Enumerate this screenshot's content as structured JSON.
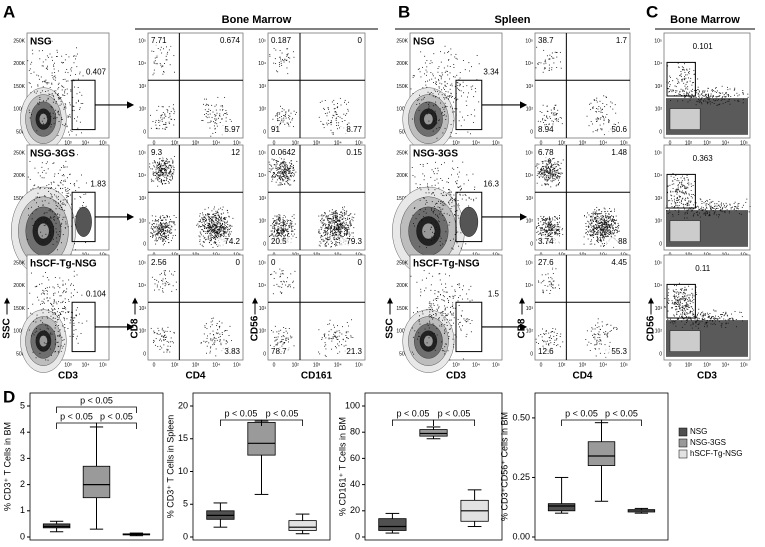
{
  "panels": [
    {
      "letter": "A",
      "title": "Bone Marrow",
      "x_labels": [
        "CD3",
        "CD4",
        "CD161"
      ],
      "y_labels": [
        "SSC",
        "CD8",
        "CD56"
      ],
      "rows": [
        {
          "sample": "NSG",
          "plots": [
            {
              "gate": "0.407"
            },
            {
              "tl": "7.71",
              "tr": "0.674",
              "br": "5.97"
            },
            {
              "tl": "0.187",
              "tr": "0",
              "bl": "91",
              "br": "8.77"
            }
          ]
        },
        {
          "sample": "NSG-3GS",
          "plots": [
            {
              "gate": "1.83"
            },
            {
              "tl": "9.3",
              "tr": "12",
              "br": "74.2"
            },
            {
              "tl": "0.0642",
              "tr": "0.15",
              "bl": "20.5",
              "br": "79.3"
            }
          ]
        },
        {
          "sample": "hSCF-Tg-NSG",
          "plots": [
            {
              "gate": "0.104"
            },
            {
              "tl": "2.56",
              "tr": "0",
              "br": "3.83"
            },
            {
              "tl": "0",
              "tr": "0",
              "bl": "78.7",
              "br": "21.3"
            }
          ]
        }
      ]
    },
    {
      "letter": "B",
      "title": "Spleen",
      "x_labels": [
        "CD3",
        "CD4"
      ],
      "y_labels": [
        "SSC",
        "CD8"
      ],
      "rows": [
        {
          "sample": "NSG",
          "plots": [
            {
              "gate": "3.34"
            },
            {
              "tl": "38.7",
              "tr": "1.7",
              "bl": "8.94",
              "br": "50.6"
            }
          ]
        },
        {
          "sample": "NSG-3GS",
          "plots": [
            {
              "gate": "16.3"
            },
            {
              "tl": "6.78",
              "tr": "1.48",
              "bl": "3.74",
              "br": "88"
            }
          ]
        },
        {
          "sample": "hSCF-Tg-NSG",
          "plots": [
            {
              "gate": "1.5"
            },
            {
              "tl": "27.6",
              "tr": "4.45",
              "bl": "12.6",
              "br": "55.3"
            }
          ]
        }
      ]
    },
    {
      "letter": "C",
      "title": "Bone Marrow",
      "x_labels": [
        "CD3"
      ],
      "y_labels": [
        "CD56"
      ],
      "rows": [
        {
          "plots": [
            {
              "gate": "0.101"
            }
          ]
        },
        {
          "plots": [
            {
              "gate": "0.363"
            }
          ]
        },
        {
          "plots": [
            {
              "gate": "0.11"
            }
          ]
        }
      ]
    }
  ],
  "axis_ticks": {
    "log": [
      "0",
      "10²",
      "10³",
      "10⁴",
      "10⁵"
    ],
    "linear": [
      "50K",
      "100K",
      "150K",
      "200K",
      "250K"
    ]
  },
  "panel_d": {
    "letter": "D"
  },
  "legend": [
    {
      "name": "NSG",
      "color": "#505050"
    },
    {
      "name": "NSG-3GS",
      "color": "#9a9a9a"
    },
    {
      "name": "hSCF-Tg-NSG",
      "color": "#e2e2e2"
    }
  ],
  "chart_data": [
    {
      "type": "box",
      "ylabel": "% CD3⁺ T Cells in BM",
      "ylim": [
        0,
        5
      ],
      "yticks": [
        0,
        1,
        2,
        3,
        4,
        5
      ],
      "annotations": [
        "p < 0.05",
        "p < 0.05",
        "p < 0.05"
      ],
      "boxes": [
        {
          "min": 0.2,
          "q1": 0.35,
          "median": 0.4,
          "q3": 0.5,
          "max": 0.6
        },
        {
          "min": 0.3,
          "q1": 1.5,
          "median": 2.0,
          "q3": 2.7,
          "max": 4.2
        },
        {
          "min": 0.05,
          "q1": 0.08,
          "median": 0.1,
          "q3": 0.12,
          "max": 0.15
        }
      ]
    },
    {
      "type": "box",
      "ylabel": "% CD3⁺ T Cells in Spleen",
      "ylim": [
        0,
        20
      ],
      "yticks": [
        0,
        5,
        10,
        15,
        20
      ],
      "annotations": [
        "p < 0.05",
        "p < 0.05"
      ],
      "boxes": [
        {
          "min": 1.5,
          "q1": 2.7,
          "median": 3.3,
          "q3": 4,
          "max": 5.2
        },
        {
          "min": 6.5,
          "q1": 12.5,
          "median": 14.3,
          "q3": 17.5,
          "max": 17.7
        },
        {
          "min": 0.5,
          "q1": 1,
          "median": 1.5,
          "q3": 2.5,
          "max": 3.5
        }
      ]
    },
    {
      "type": "box",
      "ylabel": "% CD161⁺ T Cells in BM",
      "ylim": [
        0,
        100
      ],
      "yticks": [
        0,
        20,
        40,
        60,
        80,
        100
      ],
      "annotations": [
        "p < 0.05",
        "p < 0.05"
      ],
      "boxes": [
        {
          "min": 3,
          "q1": 5,
          "median": 8,
          "q3": 14,
          "max": 18
        },
        {
          "min": 75,
          "q1": 77,
          "median": 79,
          "q3": 82,
          "max": 84
        },
        {
          "min": 8,
          "q1": 12,
          "median": 20,
          "q3": 28,
          "max": 36
        }
      ]
    },
    {
      "type": "box",
      "ylabel": "% CD3⁺CD56⁺ Cells in BM",
      "ylim": [
        0,
        0.55
      ],
      "yticks": [
        {
          "value": 0,
          "label": "0.00"
        },
        {
          "value": 0.25,
          "label": "0.25"
        },
        {
          "value": 0.5,
          "label": "0.50"
        }
      ],
      "annotations": [
        "p < 0.05",
        "p < 0.05"
      ],
      "boxes": [
        {
          "min": 0.1,
          "q1": 0.11,
          "median": 0.13,
          "q3": 0.14,
          "max": 0.25
        },
        {
          "min": 0.15,
          "q1": 0.3,
          "median": 0.34,
          "q3": 0.4,
          "max": 0.48
        },
        {
          "min": 0.1,
          "q1": 0.105,
          "median": 0.11,
          "q3": 0.115,
          "max": 0.12
        }
      ]
    }
  ]
}
